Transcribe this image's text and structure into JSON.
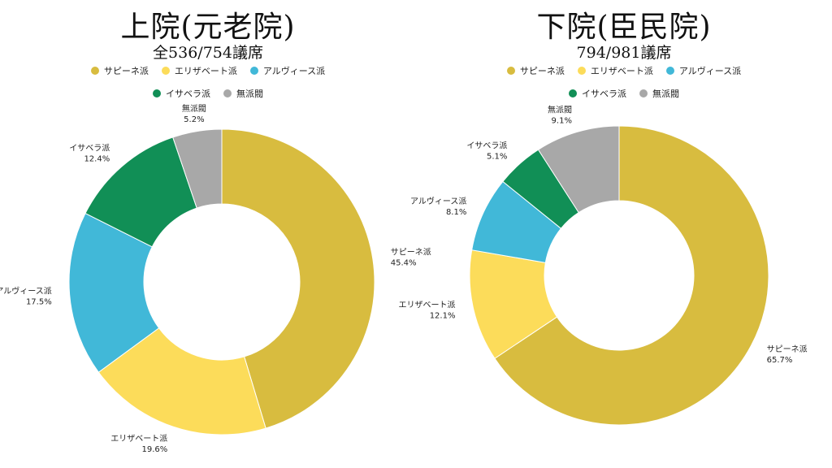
{
  "chart_data": [
    {
      "type": "pie",
      "title": "上院(元老院)",
      "subtitle": "全536/754議席",
      "categories": [
        "サピーネ派",
        "エリザベート派",
        "アルヴィース派",
        "イサベラ派",
        "無派閥"
      ],
      "values": [
        45.4,
        19.6,
        17.5,
        12.4,
        5.2
      ],
      "labels": [
        "45.4%",
        "19.6%",
        "17.5%",
        "12.4%",
        "5.2%"
      ],
      "colors": [
        "#d8bc3f",
        "#fcdc5a",
        "#41b8d8",
        "#118f56",
        "#a8a8a8"
      ],
      "legend": "top"
    },
    {
      "type": "pie",
      "title": "下院(臣民院)",
      "subtitle": "794/981議席",
      "categories": [
        "サピーネ派",
        "エリザベート派",
        "アルヴィース派",
        "イサベラ派",
        "無派閥"
      ],
      "values": [
        65.7,
        12.1,
        8.1,
        5.1,
        9.1
      ],
      "labels": [
        "65.7%",
        "12.1%",
        "8.1%",
        "5.1%",
        "9.1%"
      ],
      "colors": [
        "#d8bc3f",
        "#fcdc5a",
        "#41b8d8",
        "#118f56",
        "#a8a8a8"
      ],
      "legend": "top"
    }
  ]
}
